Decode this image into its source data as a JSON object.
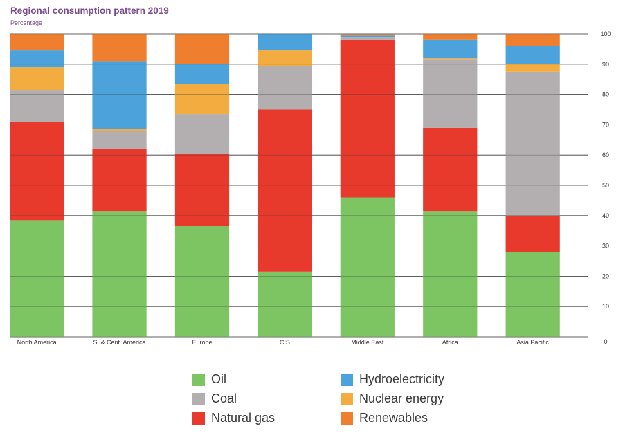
{
  "chart_data": {
    "type": "bar",
    "stacked": true,
    "title": "Regional consumption pattern 2019",
    "subtitle": "Percentage",
    "xlabel": "",
    "ylabel": "Percentage",
    "ylim": [
      0,
      100
    ],
    "yticks": [
      0,
      10,
      20,
      30,
      40,
      50,
      60,
      70,
      80,
      90,
      100
    ],
    "grid": true,
    "categories": [
      "North America",
      "S. & Cent. America",
      "Europe",
      "CIS",
      "Middle East",
      "Africa",
      "Asia Pacific"
    ],
    "series": [
      {
        "name": "Oil",
        "color": "#7dc462",
        "values": [
          38.5,
          41.5,
          36.5,
          21.5,
          46.0,
          41.5,
          28.0
        ]
      },
      {
        "name": "Natural gas",
        "color": "#e8392d",
        "values": [
          32.5,
          20.5,
          24.0,
          53.5,
          52.0,
          27.5,
          12.0
        ]
      },
      {
        "name": "Coal",
        "color": "#b3afb0",
        "values": [
          10.5,
          6.0,
          13.0,
          14.5,
          1.0,
          22.5,
          47.5
        ]
      },
      {
        "name": "Nuclear energy",
        "color": "#f2ac3f",
        "values": [
          7.5,
          0.5,
          10.0,
          5.0,
          0.0,
          0.5,
          2.5
        ]
      },
      {
        "name": "Hydroelectricity",
        "color": "#4ca3db",
        "values": [
          5.5,
          22.5,
          6.5,
          5.5,
          0.5,
          6.0,
          6.0
        ]
      },
      {
        "name": "Renewables",
        "color": "#ef7f2f",
        "values": [
          5.5,
          9.0,
          10.0,
          0.0,
          0.5,
          2.0,
          4.0
        ]
      }
    ]
  },
  "legend": {
    "items": [
      {
        "label": "Oil",
        "color": "#7dc462"
      },
      {
        "label": "Coal",
        "color": "#b3afb0"
      },
      {
        "label": "Natural gas",
        "color": "#e8392d"
      },
      {
        "label": "Hydroelectricity",
        "color": "#4ca3db"
      },
      {
        "label": "Nuclear energy",
        "color": "#f2ac3f"
      },
      {
        "label": "Renewables",
        "color": "#ef7f2f"
      }
    ]
  }
}
